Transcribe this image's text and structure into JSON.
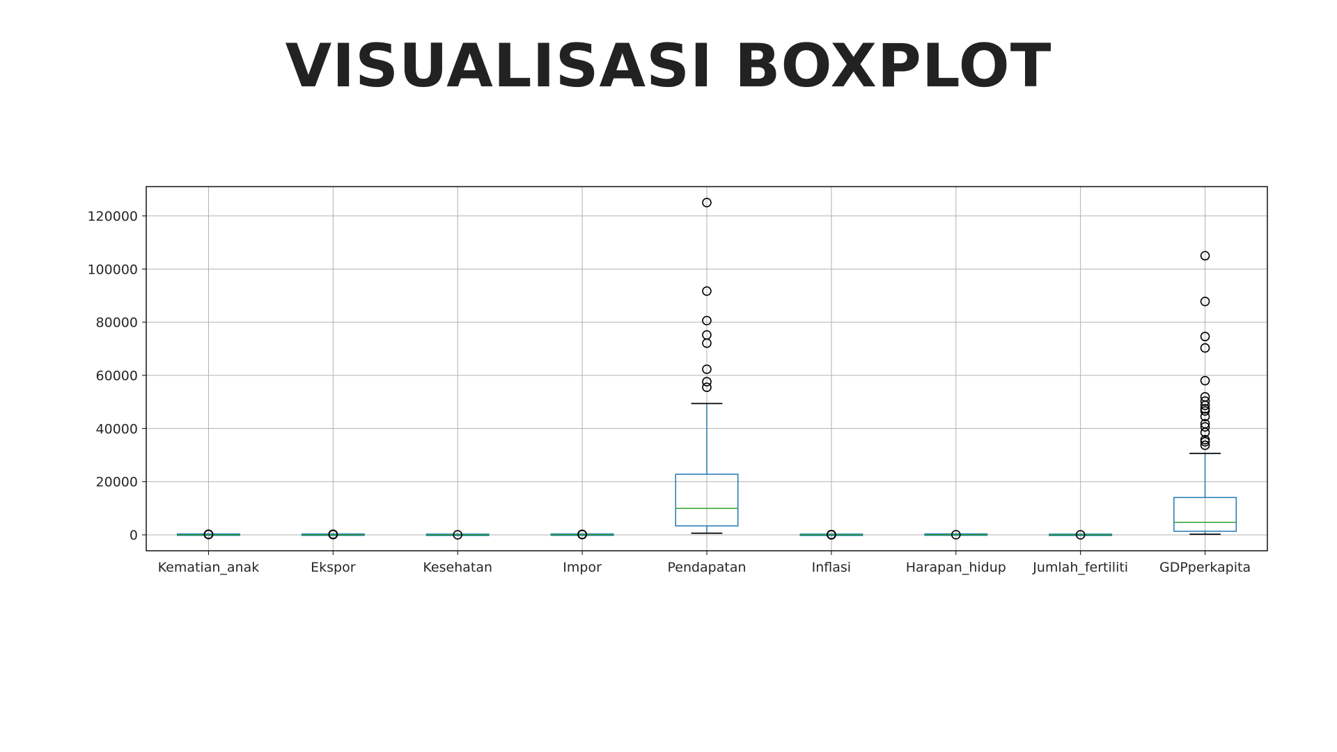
{
  "slide": {
    "title": "VISUALISASI BOXPLOT"
  },
  "colors": {
    "box": "#1f77b4",
    "median": "#2ca02c",
    "whisker_cap": "#000000",
    "flier": "#000000",
    "grid": "#b0b0b0",
    "frame": "#000000",
    "text": "#262626",
    "title": "#222222"
  },
  "chart_data": {
    "type": "boxplot",
    "title": "",
    "xlabel": "",
    "ylabel": "",
    "ylim": [
      -6000,
      131000
    ],
    "yticks": [
      0,
      20000,
      40000,
      60000,
      80000,
      100000,
      120000
    ],
    "grid": true,
    "categories": [
      "Kematian_anak",
      "Ekspor",
      "Kesehatan",
      "Impor",
      "Pendapatan",
      "Inflasi",
      "Harapan_hidup",
      "Jumlah_fertiliti",
      "GDPperkapita"
    ],
    "boxes": [
      {
        "name": "Kematian_anak",
        "whislo": 2.6,
        "q1": 8.25,
        "med": 19.3,
        "q3": 62.1,
        "whishi": 142,
        "fliers": [
          149,
          150,
          160,
          208
        ]
      },
      {
        "name": "Ekspor",
        "whislo": 0.1,
        "q1": 23.8,
        "med": 35,
        "q3": 51.4,
        "whishi": 93.8,
        "fliers": [
          103,
          108,
          153,
          175,
          200
        ]
      },
      {
        "name": "Kesehatan",
        "whislo": 1.8,
        "q1": 4.9,
        "med": 6.3,
        "q3": 8.6,
        "whishi": 14.2,
        "fliers": [
          17.9
        ]
      },
      {
        "name": "Impor",
        "whislo": 0.07,
        "q1": 30.2,
        "med": 43.3,
        "q3": 58.8,
        "whishi": 101,
        "fliers": [
          108,
          142,
          154,
          174
        ]
      },
      {
        "name": "Pendapatan",
        "whislo": 609,
        "q1": 3355,
        "med": 9960,
        "q3": 22800,
        "whishi": 49400,
        "fliers": [
          55500,
          57600,
          62300,
          72100,
          75200,
          80600,
          91700,
          125000
        ]
      },
      {
        "name": "Inflasi",
        "whislo": -4.2,
        "q1": 1.8,
        "med": 5.4,
        "q3": 10.8,
        "whishi": 24.9,
        "fliers": [
          26.5,
          39.2,
          41.5,
          45.9,
          104
        ]
      },
      {
        "name": "Harapan_hidup",
        "whislo": 47.5,
        "q1": 65.3,
        "med": 73.1,
        "q3": 76.8,
        "whishi": 82.8,
        "fliers": [
          32.1
        ]
      },
      {
        "name": "Jumlah_fertiliti",
        "whislo": 1.15,
        "q1": 1.8,
        "med": 2.4,
        "q3": 3.9,
        "whishi": 7.0,
        "fliers": [
          7.49
        ]
      },
      {
        "name": "GDPperkapita",
        "whislo": 231,
        "q1": 1330,
        "med": 4660,
        "q3": 14050,
        "whishi": 30600,
        "fliers": [
          33700,
          35000,
          35800,
          38500,
          40600,
          41800,
          44500,
          46600,
          47400,
          48700,
          50300,
          51900,
          58000,
          70300,
          74600,
          87800,
          105000
        ]
      }
    ]
  }
}
